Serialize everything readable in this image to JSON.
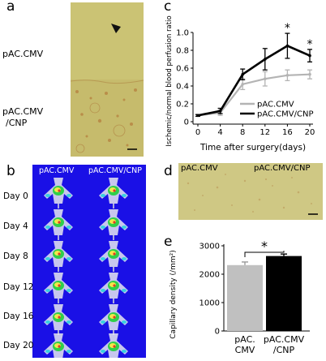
{
  "panels": {
    "a": {
      "letter": "a",
      "top_label": "pAC.CMV",
      "bottom_label_line1": "pAC.CMV",
      "bottom_label_line2": "/CNP",
      "colors": {
        "tissue": "#c9c274",
        "tissue_dark": "#c4b86e",
        "stain": "#b5722f"
      }
    },
    "b": {
      "letter": "b",
      "col_labels": [
        "pAC.CMV",
        "pAC.CMV/CNP"
      ],
      "days": [
        "Day 0",
        "Day 4",
        "Day 8",
        "Day 12",
        "Day 16",
        "Day 20"
      ],
      "colors": {
        "background": "#1a10e6",
        "label": "#ffffff"
      }
    },
    "c": {
      "letter": "c"
    },
    "d": {
      "letter": "d",
      "left_label": "pAC.CMV",
      "right_label": "pAC.CMV/CNP",
      "colors": {
        "tissue": "#cfc884"
      }
    },
    "e": {
      "letter": "e"
    }
  },
  "chart_data": [
    {
      "id": "c",
      "type": "line",
      "ylabel": "Ischemic/normal blood perfusion ratio",
      "xlabel": "Time after surgery(days)",
      "x": [
        0,
        4,
        8,
        12,
        16,
        20
      ],
      "xticks": [
        "0",
        "4",
        "8",
        "12",
        "16",
        "20"
      ],
      "ylim": [
        0,
        1.0
      ],
      "yticks": [
        "0",
        "0.2",
        "0.4",
        "0.6",
        "0.8",
        "1.0"
      ],
      "series": [
        {
          "name": "pAC.CMV",
          "color": "#b4b4b4",
          "values": [
            0.07,
            0.1,
            0.42,
            0.48,
            0.52,
            0.53
          ],
          "errors": [
            0.01,
            0.03,
            0.06,
            0.08,
            0.06,
            0.05
          ]
        },
        {
          "name": "pAC.CMV/CNP",
          "color": "#000000",
          "values": [
            0.07,
            0.12,
            0.53,
            0.7,
            0.85,
            0.74
          ],
          "errors": [
            0.01,
            0.03,
            0.06,
            0.12,
            0.14,
            0.07
          ]
        }
      ],
      "significance": [
        {
          "x": 16,
          "marker": "*"
        },
        {
          "x": 20,
          "marker": "*"
        }
      ],
      "legend_position": "bottom-right",
      "grid": false
    },
    {
      "id": "e",
      "type": "bar",
      "ylabel": "Capillary density (/mm²)",
      "categories": [
        "pAC.\nCMV",
        "pAC.CMV\n/CNP"
      ],
      "category_lines": [
        [
          "pAC.",
          "CMV"
        ],
        [
          "pAC.CMV",
          "/CNP"
        ]
      ],
      "values": [
        2320,
        2640
      ],
      "errors": [
        110,
        70
      ],
      "colors": [
        "#c0c0c0",
        "#000000"
      ],
      "ylim": [
        0,
        3000
      ],
      "yticks": [
        "0",
        "1000",
        "2000",
        "3000"
      ],
      "significance": {
        "marker": "*"
      },
      "grid": false
    }
  ]
}
